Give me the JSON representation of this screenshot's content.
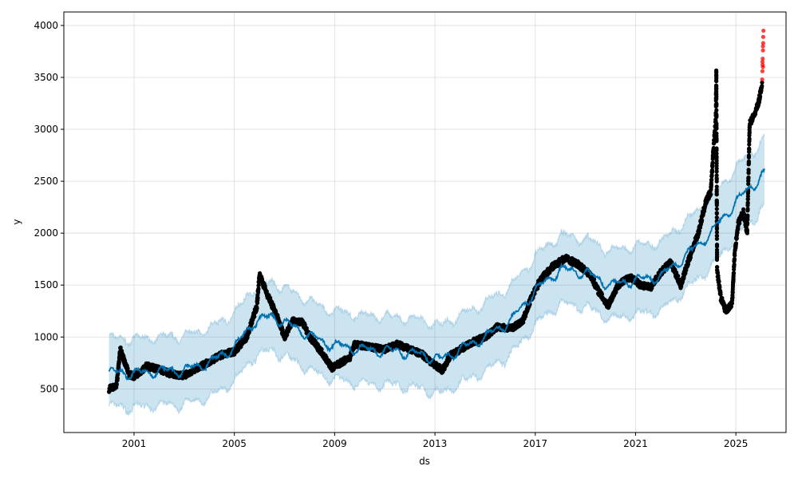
{
  "chart_data": {
    "type": "scatter",
    "title": "",
    "xlabel": "ds",
    "ylabel": "y",
    "xlim": [
      1998.2,
      2027.0
    ],
    "ylim": [
      80,
      4130
    ],
    "grid": true,
    "x_ticks": [
      2001,
      2005,
      2009,
      2013,
      2017,
      2021,
      2025
    ],
    "x_tick_labels": [
      "2001",
      "2005",
      "2009",
      "2013",
      "2017",
      "2021",
      "2025"
    ],
    "y_ticks": [
      500,
      1000,
      1500,
      2000,
      2500,
      3000,
      3500,
      4000
    ],
    "y_tick_labels": [
      "500",
      "1000",
      "1500",
      "2000",
      "2500",
      "3000",
      "3500",
      "4000"
    ],
    "colors": {
      "observed": "#000000",
      "forecast": "#0072B2",
      "interval": "#0072B2",
      "outliers": "#ff0000"
    },
    "observed_keypoints": [
      [
        2000.0,
        500
      ],
      [
        2000.3,
        520
      ],
      [
        2000.45,
        880
      ],
      [
        2000.6,
        780
      ],
      [
        2000.8,
        640
      ],
      [
        2001.0,
        620
      ],
      [
        2001.5,
        720
      ],
      [
        2002.0,
        690
      ],
      [
        2002.5,
        640
      ],
      [
        2003.0,
        630
      ],
      [
        2003.5,
        700
      ],
      [
        2004.0,
        760
      ],
      [
        2004.5,
        830
      ],
      [
        2005.0,
        860
      ],
      [
        2005.5,
        1000
      ],
      [
        2005.9,
        1300
      ],
      [
        2006.0,
        1600
      ],
      [
        2006.3,
        1420
      ],
      [
        2006.7,
        1200
      ],
      [
        2007.0,
        1000
      ],
      [
        2007.3,
        1150
      ],
      [
        2007.7,
        1150
      ],
      [
        2008.0,
        1000
      ],
      [
        2008.5,
        850
      ],
      [
        2008.9,
        700
      ],
      [
        2009.3,
        760
      ],
      [
        2009.6,
        800
      ],
      [
        2009.8,
        930
      ],
      [
        2010.5,
        900
      ],
      [
        2011.0,
        880
      ],
      [
        2011.5,
        930
      ],
      [
        2012.0,
        880
      ],
      [
        2012.5,
        830
      ],
      [
        2013.0,
        730
      ],
      [
        2013.3,
        680
      ],
      [
        2013.6,
        820
      ],
      [
        2014.0,
        880
      ],
      [
        2014.5,
        950
      ],
      [
        2015.0,
        1000
      ],
      [
        2015.5,
        1100
      ],
      [
        2016.0,
        1080
      ],
      [
        2016.5,
        1150
      ],
      [
        2016.8,
        1350
      ],
      [
        2017.2,
        1550
      ],
      [
        2017.7,
        1680
      ],
      [
        2018.2,
        1760
      ],
      [
        2018.7,
        1700
      ],
      [
        2019.2,
        1600
      ],
      [
        2019.5,
        1450
      ],
      [
        2019.9,
        1300
      ],
      [
        2020.3,
        1500
      ],
      [
        2020.8,
        1580
      ],
      [
        2021.2,
        1500
      ],
      [
        2021.6,
        1480
      ],
      [
        2022.0,
        1620
      ],
      [
        2022.4,
        1720
      ],
      [
        2022.8,
        1500
      ],
      [
        2023.2,
        1800
      ],
      [
        2023.5,
        2000
      ],
      [
        2023.8,
        2300
      ],
      [
        2024.0,
        2400
      ],
      [
        2024.1,
        2800
      ],
      [
        2024.2,
        3100
      ],
      [
        2024.22,
        3560
      ],
      [
        2024.25,
        1650
      ],
      [
        2024.4,
        1380
      ],
      [
        2024.6,
        1250
      ],
      [
        2024.85,
        1330
      ],
      [
        2024.95,
        1800
      ],
      [
        2025.1,
        2100
      ],
      [
        2025.3,
        2200
      ],
      [
        2025.45,
        2000
      ],
      [
        2025.55,
        3050
      ],
      [
        2025.75,
        3150
      ],
      [
        2025.9,
        3250
      ],
      [
        2026.05,
        3450
      ]
    ],
    "outlier_points": [
      [
        2026.05,
        3480
      ],
      [
        2026.06,
        3560
      ],
      [
        2026.07,
        3620
      ],
      [
        2026.07,
        3680
      ],
      [
        2026.08,
        3760
      ],
      [
        2026.08,
        3800
      ],
      [
        2026.09,
        3830
      ],
      [
        2026.09,
        3890
      ],
      [
        2026.1,
        3950
      ],
      [
        2026.08,
        3600
      ],
      [
        2026.06,
        3650
      ]
    ],
    "forecast_keypoints": [
      [
        2000.0,
        660
      ],
      [
        2001.0,
        650
      ],
      [
        2002.0,
        670
      ],
      [
        2003.0,
        680
      ],
      [
        2004.0,
        750
      ],
      [
        2005.0,
        900
      ],
      [
        2005.8,
        1150
      ],
      [
        2006.5,
        1200
      ],
      [
        2007.5,
        1080
      ],
      [
        2008.5,
        950
      ],
      [
        2009.5,
        900
      ],
      [
        2010.5,
        870
      ],
      [
        2011.5,
        860
      ],
      [
        2012.5,
        830
      ],
      [
        2013.2,
        780
      ],
      [
        2014.0,
        880
      ],
      [
        2015.0,
        1000
      ],
      [
        2016.0,
        1150
      ],
      [
        2017.0,
        1450
      ],
      [
        2018.0,
        1650
      ],
      [
        2019.0,
        1620
      ],
      [
        2020.0,
        1500
      ],
      [
        2021.0,
        1550
      ],
      [
        2022.0,
        1580
      ],
      [
        2023.0,
        1780
      ],
      [
        2024.0,
        2000
      ],
      [
        2025.0,
        2300
      ],
      [
        2026.15,
        2580
      ]
    ],
    "interval_halfwidth": 330,
    "seasonal_amplitude": 60
  }
}
